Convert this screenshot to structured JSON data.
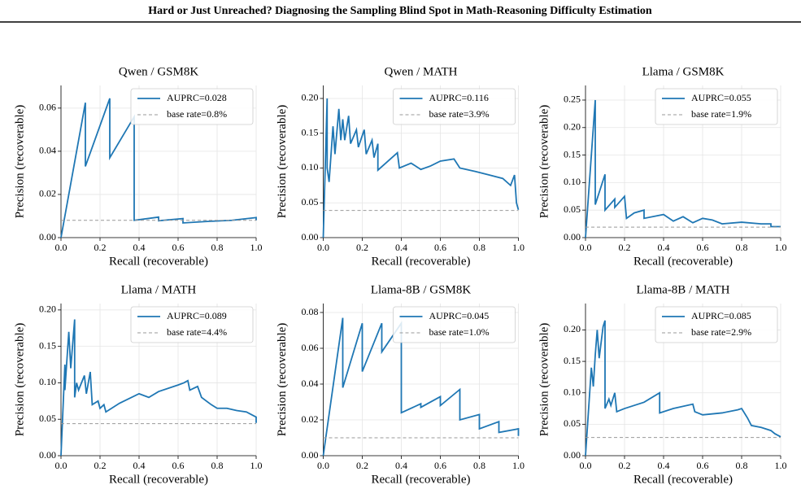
{
  "header": {
    "title": "Hard or Just Unreached? Diagnosing the Sampling Blind Spot in Math-Reasoning Difficulty Estimation"
  },
  "chart_data": [
    {
      "type": "line",
      "title": "Qwen / GSM8K",
      "xlabel": "Recall (recoverable)",
      "ylabel": "Precision (recoverable)",
      "xlim": [
        0,
        1
      ],
      "ylim": [
        0,
        0.0705
      ],
      "xticks": [
        {
          "value": 0,
          "label": "0.0"
        },
        {
          "value": 0.2,
          "label": "0.2"
        },
        {
          "value": 0.4,
          "label": "0.4"
        },
        {
          "value": 0.6,
          "label": "0.6"
        },
        {
          "value": 0.8,
          "label": "0.8"
        },
        {
          "value": 1,
          "label": "1.0"
        }
      ],
      "yticks": [
        {
          "value": 0,
          "label": "0.00"
        },
        {
          "value": 0.02,
          "label": "0.02"
        },
        {
          "value": 0.04,
          "label": "0.04"
        },
        {
          "value": 0.06,
          "label": "0.06"
        }
      ],
      "grid": true,
      "legend": "upper right",
      "series": [
        {
          "name": "AUPRC=0.028",
          "color": "#1f77b4",
          "style": "solid",
          "x": [
            0,
            0.125,
            0.125,
            0.25,
            0.25,
            0.375,
            0.375,
            0.5,
            0.5,
            0.625,
            0.625,
            0.75,
            0.875,
            1.0,
            1.0
          ],
          "values": [
            0,
            0.0625,
            0.033,
            0.0645,
            0.037,
            0.056,
            0.008,
            0.0095,
            0.0078,
            0.0088,
            0.0068,
            0.0075,
            0.008,
            0.0093,
            0.008
          ]
        },
        {
          "name": "base rate=0.8%",
          "color": "#999999",
          "style": "dashed",
          "x": [
            0,
            1
          ],
          "values": [
            0.008,
            0.008
          ]
        }
      ]
    },
    {
      "type": "line",
      "title": "Qwen / MATH",
      "xlabel": "Recall (recoverable)",
      "ylabel": "Precision (recoverable)",
      "xlim": [
        0,
        1
      ],
      "ylim": [
        0,
        0.2187
      ],
      "xticks": [
        {
          "value": 0,
          "label": "0.0"
        },
        {
          "value": 0.2,
          "label": "0.2"
        },
        {
          "value": 0.4,
          "label": "0.4"
        },
        {
          "value": 0.6,
          "label": "0.6"
        },
        {
          "value": 0.8,
          "label": "0.8"
        },
        {
          "value": 1,
          "label": "1.0"
        }
      ],
      "yticks": [
        {
          "value": 0,
          "label": "0.00"
        },
        {
          "value": 0.05,
          "label": "0.05"
        },
        {
          "value": 0.1,
          "label": "0.10"
        },
        {
          "value": 0.15,
          "label": "0.15"
        },
        {
          "value": 0.2,
          "label": "0.20"
        }
      ],
      "grid": true,
      "legend": "upper right",
      "series": [
        {
          "name": "AUPRC=0.116",
          "color": "#1f77b4",
          "style": "solid",
          "x": [
            0,
            0.02,
            0.02,
            0.03,
            0.05,
            0.06,
            0.08,
            0.09,
            0.1,
            0.11,
            0.13,
            0.14,
            0.17,
            0.18,
            0.21,
            0.22,
            0.25,
            0.26,
            0.28,
            0.28,
            0.38,
            0.39,
            0.45,
            0.5,
            0.55,
            0.6,
            0.67,
            0.7,
            0.78,
            0.85,
            0.92,
            0.96,
            0.98,
            0.99,
            1.0
          ],
          "values": [
            0,
            0.2,
            0.1,
            0.08,
            0.16,
            0.12,
            0.185,
            0.14,
            0.17,
            0.14,
            0.175,
            0.135,
            0.155,
            0.13,
            0.155,
            0.12,
            0.14,
            0.115,
            0.135,
            0.097,
            0.122,
            0.1,
            0.107,
            0.098,
            0.103,
            0.11,
            0.113,
            0.1,
            0.095,
            0.09,
            0.085,
            0.075,
            0.09,
            0.05,
            0.04
          ]
        },
        {
          "name": "base rate=3.9%",
          "color": "#999999",
          "style": "dashed",
          "x": [
            0,
            1
          ],
          "values": [
            0.039,
            0.039
          ]
        }
      ]
    },
    {
      "type": "line",
      "title": "Llama / GSM8K",
      "xlabel": "Recall (recoverable)",
      "ylabel": "Precision (recoverable)",
      "xlim": [
        0,
        1
      ],
      "ylim": [
        0,
        0.2766
      ],
      "xticks": [
        {
          "value": 0,
          "label": "0.0"
        },
        {
          "value": 0.2,
          "label": "0.2"
        },
        {
          "value": 0.4,
          "label": "0.4"
        },
        {
          "value": 0.6,
          "label": "0.6"
        },
        {
          "value": 0.8,
          "label": "0.8"
        },
        {
          "value": 1,
          "label": "1.0"
        }
      ],
      "yticks": [
        {
          "value": 0,
          "label": "0.00"
        },
        {
          "value": 0.05,
          "label": "0.05"
        },
        {
          "value": 0.1,
          "label": "0.10"
        },
        {
          "value": 0.15,
          "label": "0.15"
        },
        {
          "value": 0.2,
          "label": "0.20"
        },
        {
          "value": 0.25,
          "label": "0.25"
        }
      ],
      "grid": true,
      "legend": "upper right",
      "series": [
        {
          "name": "AUPRC=0.055",
          "color": "#1f77b4",
          "style": "solid",
          "x": [
            0,
            0.05,
            0.05,
            0.1,
            0.1,
            0.15,
            0.15,
            0.2,
            0.21,
            0.25,
            0.3,
            0.3,
            0.4,
            0.45,
            0.5,
            0.55,
            0.6,
            0.65,
            0.7,
            0.8,
            0.9,
            0.95,
            0.95,
            1.0
          ],
          "values": [
            0,
            0.25,
            0.06,
            0.115,
            0.05,
            0.07,
            0.055,
            0.075,
            0.035,
            0.045,
            0.05,
            0.035,
            0.042,
            0.03,
            0.038,
            0.027,
            0.035,
            0.032,
            0.025,
            0.028,
            0.025,
            0.025,
            0.02,
            0.02
          ]
        },
        {
          "name": "base rate=1.9%",
          "color": "#999999",
          "style": "dashed",
          "x": [
            0,
            1
          ],
          "values": [
            0.019,
            0.019
          ]
        }
      ]
    },
    {
      "type": "line",
      "title": "Llama / MATH",
      "xlabel": "Recall (recoverable)",
      "ylabel": "Precision (recoverable)",
      "xlim": [
        0,
        1
      ],
      "ylim": [
        0,
        0.2088
      ],
      "xticks": [
        {
          "value": 0,
          "label": "0.0"
        },
        {
          "value": 0.2,
          "label": "0.2"
        },
        {
          "value": 0.4,
          "label": "0.4"
        },
        {
          "value": 0.6,
          "label": "0.6"
        },
        {
          "value": 0.8,
          "label": "0.8"
        },
        {
          "value": 1,
          "label": "1.0"
        }
      ],
      "yticks": [
        {
          "value": 0,
          "label": "0.00"
        },
        {
          "value": 0.05,
          "label": "0.05"
        },
        {
          "value": 0.1,
          "label": "0.10"
        },
        {
          "value": 0.15,
          "label": "0.15"
        },
        {
          "value": 0.2,
          "label": "0.20"
        }
      ],
      "grid": true,
      "legend": "upper right",
      "series": [
        {
          "name": "AUPRC=0.089",
          "color": "#1f77b4",
          "style": "solid",
          "x": [
            0,
            0.02,
            0.02,
            0.04,
            0.05,
            0.07,
            0.07,
            0.08,
            0.09,
            0.12,
            0.13,
            0.15,
            0.16,
            0.19,
            0.2,
            0.22,
            0.23,
            0.3,
            0.4,
            0.45,
            0.5,
            0.6,
            0.63,
            0.65,
            0.66,
            0.7,
            0.72,
            0.77,
            0.8,
            0.85,
            0.9,
            0.95,
            1.0,
            1.0
          ],
          "values": [
            0,
            0.125,
            0.09,
            0.17,
            0.12,
            0.187,
            0.08,
            0.1,
            0.09,
            0.11,
            0.085,
            0.115,
            0.07,
            0.075,
            0.065,
            0.07,
            0.06,
            0.072,
            0.085,
            0.08,
            0.088,
            0.097,
            0.1,
            0.103,
            0.09,
            0.095,
            0.08,
            0.07,
            0.065,
            0.065,
            0.062,
            0.06,
            0.053,
            0.045
          ]
        },
        {
          "name": "base rate=4.4%",
          "color": "#999999",
          "style": "dashed",
          "x": [
            0,
            1
          ],
          "values": [
            0.044,
            0.044
          ]
        }
      ]
    },
    {
      "type": "line",
      "title": "Llama-8B / GSM8K",
      "xlabel": "Recall (recoverable)",
      "ylabel": "Precision (recoverable)",
      "xlim": [
        0,
        1
      ],
      "ylim": [
        0,
        0.085
      ],
      "xticks": [
        {
          "value": 0,
          "label": "0.0"
        },
        {
          "value": 0.2,
          "label": "0.2"
        },
        {
          "value": 0.4,
          "label": "0.4"
        },
        {
          "value": 0.6,
          "label": "0.6"
        },
        {
          "value": 0.8,
          "label": "0.8"
        },
        {
          "value": 1,
          "label": "1.0"
        }
      ],
      "yticks": [
        {
          "value": 0,
          "label": "0.00"
        },
        {
          "value": 0.02,
          "label": "0.02"
        },
        {
          "value": 0.04,
          "label": "0.04"
        },
        {
          "value": 0.06,
          "label": "0.06"
        },
        {
          "value": 0.08,
          "label": "0.08"
        }
      ],
      "grid": true,
      "legend": "upper right",
      "series": [
        {
          "name": "AUPRC=0.045",
          "color": "#1f77b4",
          "style": "solid",
          "x": [
            0,
            0.1,
            0.1,
            0.2,
            0.2,
            0.3,
            0.3,
            0.4,
            0.4,
            0.5,
            0.5,
            0.6,
            0.6,
            0.7,
            0.7,
            0.8,
            0.8,
            0.9,
            0.9,
            1.0,
            1.0
          ],
          "values": [
            0,
            0.077,
            0.038,
            0.074,
            0.047,
            0.074,
            0.058,
            0.074,
            0.024,
            0.029,
            0.027,
            0.033,
            0.028,
            0.037,
            0.02,
            0.023,
            0.015,
            0.019,
            0.013,
            0.015,
            0.011
          ]
        },
        {
          "name": "base rate=1.0%",
          "color": "#999999",
          "style": "dashed",
          "x": [
            0,
            1
          ],
          "values": [
            0.01,
            0.01
          ]
        }
      ]
    },
    {
      "type": "line",
      "title": "Llama-8B / MATH",
      "xlabel": "Recall (recoverable)",
      "ylabel": "Precision (recoverable)",
      "xlim": [
        0,
        1
      ],
      "ylim": [
        0,
        0.242
      ],
      "xticks": [
        {
          "value": 0,
          "label": "0.0"
        },
        {
          "value": 0.2,
          "label": "0.2"
        },
        {
          "value": 0.4,
          "label": "0.4"
        },
        {
          "value": 0.6,
          "label": "0.6"
        },
        {
          "value": 0.8,
          "label": "0.8"
        },
        {
          "value": 1,
          "label": "1.0"
        }
      ],
      "yticks": [
        {
          "value": 0,
          "label": "0.00"
        },
        {
          "value": 0.05,
          "label": "0.05"
        },
        {
          "value": 0.1,
          "label": "0.10"
        },
        {
          "value": 0.15,
          "label": "0.15"
        },
        {
          "value": 0.2,
          "label": "0.20"
        }
      ],
      "grid": true,
      "legend": "upper right",
      "series": [
        {
          "name": "AUPRC=0.085",
          "color": "#1f77b4",
          "style": "solid",
          "x": [
            0,
            0.03,
            0.04,
            0.05,
            0.06,
            0.07,
            0.09,
            0.1,
            0.1,
            0.12,
            0.13,
            0.15,
            0.16,
            0.2,
            0.25,
            0.3,
            0.38,
            0.38,
            0.45,
            0.55,
            0.56,
            0.6,
            0.7,
            0.78,
            0.8,
            0.83,
            0.85,
            0.9,
            0.95,
            0.97,
            1.0
          ],
          "values": [
            0,
            0.14,
            0.11,
            0.16,
            0.2,
            0.155,
            0.205,
            0.215,
            0.075,
            0.09,
            0.08,
            0.1,
            0.07,
            0.075,
            0.08,
            0.085,
            0.1,
            0.068,
            0.075,
            0.082,
            0.07,
            0.065,
            0.068,
            0.073,
            0.075,
            0.06,
            0.048,
            0.045,
            0.04,
            0.035,
            0.03
          ]
        },
        {
          "name": "base rate=2.9%",
          "color": "#999999",
          "style": "dashed",
          "x": [
            0,
            1
          ],
          "values": [
            0.029,
            0.029
          ]
        }
      ]
    }
  ]
}
